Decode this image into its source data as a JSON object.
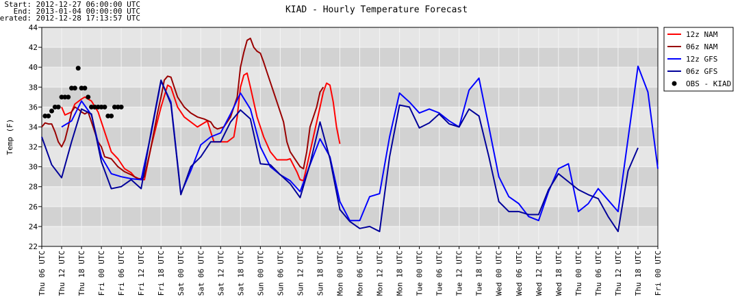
{
  "chart_data": {
    "type": "line",
    "title": "KIAD - Hourly Temperature Forecast",
    "info": [
      "Start: 2012-12-27 06:00:00 UTC",
      "End: 2013-01-04 00:00:00 UTC",
      "Generated: 2012-12-28 17:13:57 UTC"
    ],
    "ylabel": "Temp (F)",
    "xlim": [
      0,
      186
    ],
    "xticks": [
      {
        "value": 0,
        "label": "Thu 06 UTC"
      },
      {
        "value": 6,
        "label": "Thu 12 UTC"
      },
      {
        "value": 12,
        "label": "Thu 18 UTC"
      },
      {
        "value": 18,
        "label": "Fri 00 UTC"
      },
      {
        "value": 24,
        "label": "Fri 06 UTC"
      },
      {
        "value": 30,
        "label": "Fri 12 UTC"
      },
      {
        "value": 36,
        "label": "Fri 18 UTC"
      },
      {
        "value": 42,
        "label": "Sat 00 UTC"
      },
      {
        "value": 48,
        "label": "Sat 06 UTC"
      },
      {
        "value": 54,
        "label": "Sat 12 UTC"
      },
      {
        "value": 60,
        "label": "Sat 18 UTC"
      },
      {
        "value": 66,
        "label": "Sun 00 UTC"
      },
      {
        "value": 72,
        "label": "Sun 06 UTC"
      },
      {
        "value": 78,
        "label": "Sun 12 UTC"
      },
      {
        "value": 84,
        "label": "Sun 18 UTC"
      },
      {
        "value": 90,
        "label": "Mon 00 UTC"
      },
      {
        "value": 96,
        "label": "Mon 06 UTC"
      },
      {
        "value": 102,
        "label": "Mon 12 UTC"
      },
      {
        "value": 108,
        "label": "Mon 18 UTC"
      },
      {
        "value": 114,
        "label": "Tue 00 UTC"
      },
      {
        "value": 120,
        "label": "Tue 06 UTC"
      },
      {
        "value": 126,
        "label": "Tue 12 UTC"
      },
      {
        "value": 132,
        "label": "Tue 18 UTC"
      },
      {
        "value": 138,
        "label": "Wed 00 UTC"
      },
      {
        "value": 144,
        "label": "Wed 06 UTC"
      },
      {
        "value": 150,
        "label": "Wed 12 UTC"
      },
      {
        "value": 156,
        "label": "Wed 18 UTC"
      },
      {
        "value": 162,
        "label": "Thu 00 UTC"
      },
      {
        "value": 168,
        "label": "Thu 06 UTC"
      },
      {
        "value": 174,
        "label": "Thu 12 UTC"
      },
      {
        "value": 180,
        "label": "Thu 18 UTC"
      },
      {
        "value": 186,
        "label": "Fri 00 UTC"
      }
    ],
    "ylim": [
      22,
      44
    ],
    "yticks": [
      22,
      24,
      26,
      28,
      30,
      32,
      34,
      36,
      38,
      40,
      42,
      44
    ],
    "grid": true,
    "legend": "outside upper right",
    "series": [
      {
        "name": "12z NAM",
        "color": "#ff0000",
        "x": [
          6,
          7,
          9,
          10,
          12,
          13,
          15,
          17,
          19,
          21,
          23,
          25,
          27,
          28,
          30,
          31,
          33,
          36,
          38,
          39,
          40,
          41,
          43,
          45,
          47,
          49,
          50,
          51,
          52,
          54,
          56,
          58,
          59,
          60,
          61,
          62,
          63,
          65,
          67,
          69,
          71,
          74,
          75,
          77,
          78,
          79,
          80,
          82,
          84,
          85,
          86,
          87,
          88,
          89,
          90
        ],
        "values": [
          36,
          35.2,
          35.5,
          36.3,
          36.8,
          37,
          36.6,
          35.5,
          33.5,
          31.5,
          30.8,
          29.8,
          29.4,
          29,
          28.7,
          28.7,
          32,
          36,
          38.2,
          38,
          37,
          36,
          35,
          34.5,
          34,
          34.4,
          34.6,
          33.5,
          32.5,
          32.5,
          32.5,
          33,
          35,
          38,
          39.2,
          39.4,
          38,
          35,
          33,
          31.5,
          30.7,
          30.7,
          30.8,
          29.5,
          28.7,
          28.6,
          30,
          33,
          36,
          37.5,
          38.4,
          38.2,
          36.5,
          34,
          32.3
        ]
      },
      {
        "name": "06z NAM",
        "color": "#990000",
        "x": [
          0,
          1,
          2,
          3,
          4,
          5,
          6,
          7,
          8,
          9,
          10,
          11,
          12,
          13,
          14,
          15,
          16,
          17,
          18,
          19,
          21,
          23,
          25,
          27,
          29,
          30,
          31,
          33,
          35,
          36,
          37,
          38,
          39,
          40,
          41,
          43,
          45,
          47,
          49,
          51,
          52,
          53,
          55,
          57,
          59,
          60,
          61,
          62,
          63,
          64,
          65,
          66,
          67,
          68,
          70,
          72,
          73,
          74,
          75,
          77,
          78,
          79,
          80,
          81,
          83,
          84,
          85
        ],
        "values": [
          34,
          34.4,
          34.3,
          34.3,
          33.5,
          32.5,
          32,
          32.7,
          34,
          35.5,
          36,
          35.8,
          35.5,
          35.3,
          35.5,
          34.5,
          33.5,
          32.5,
          32,
          31,
          30.8,
          30,
          29.5,
          29.2,
          28.8,
          28.8,
          29,
          32,
          35.5,
          37,
          38.7,
          39.1,
          39,
          38,
          37,
          36,
          35.4,
          35,
          34.8,
          34.5,
          34,
          33.8,
          34,
          35,
          37,
          40,
          41.5,
          42.7,
          42.9,
          42,
          41.6,
          41.4,
          40.5,
          39.5,
          37.5,
          35.5,
          34.5,
          32.5,
          31.5,
          30.5,
          30,
          29.8,
          31.5,
          34,
          36,
          37.5,
          38
        ]
      },
      {
        "name": "12z GFS",
        "color": "#0000ff",
        "x": [
          6,
          9,
          12,
          15,
          18,
          21,
          24,
          27,
          30,
          33,
          36,
          39,
          42,
          45,
          48,
          51,
          54,
          57,
          60,
          63,
          66,
          69,
          72,
          75,
          78,
          81,
          84,
          87,
          90,
          93,
          96,
          99,
          102,
          105,
          108,
          111,
          114,
          117,
          120,
          123,
          126,
          129,
          132,
          135,
          138,
          141,
          144,
          147,
          150,
          153,
          156,
          159,
          162,
          165,
          168,
          174,
          180,
          183,
          186
        ],
        "values": [
          34,
          34.6,
          36.6,
          35.2,
          31,
          29.3,
          29,
          28.8,
          28.7,
          33.3,
          38.6,
          36.5,
          27.3,
          29.6,
          32.2,
          33,
          33.4,
          35.3,
          37.4,
          35.8,
          32,
          30,
          29.2,
          28.6,
          27.5,
          30.2,
          32.8,
          31,
          26.5,
          24.6,
          24.6,
          27,
          27.3,
          33,
          37.4,
          36.5,
          35.4,
          35.8,
          35.4,
          34.6,
          34,
          37.7,
          38.9,
          34,
          29,
          27,
          26.3,
          25,
          24.6,
          27.5,
          29.8,
          30.3,
          25.5,
          26.3,
          27.8,
          25.5,
          40.1,
          37.5,
          29.8
        ]
      },
      {
        "name": "06z GFS",
        "color": "#000099",
        "x": [
          0,
          3,
          6,
          9,
          12,
          15,
          18,
          21,
          24,
          27,
          30,
          33,
          36,
          39,
          42,
          45,
          48,
          51,
          54,
          57,
          60,
          63,
          66,
          69,
          72,
          75,
          78,
          81,
          84,
          87,
          90,
          93,
          96,
          99,
          102,
          105,
          108,
          111,
          114,
          117,
          120,
          123,
          126,
          129,
          132,
          135,
          138,
          141,
          144,
          147,
          150,
          153,
          156,
          159,
          162,
          165,
          168,
          171,
          174,
          177,
          180
        ],
        "values": [
          33,
          30.2,
          28.9,
          32.5,
          35.8,
          35.3,
          30.5,
          27.8,
          28,
          28.7,
          27.8,
          33.5,
          38.7,
          36.3,
          27.2,
          30,
          31,
          32.5,
          32.5,
          34.5,
          35.7,
          34.8,
          30.3,
          30.2,
          29.2,
          28.3,
          26.9,
          30.3,
          34.5,
          30.8,
          25.7,
          24.5,
          23.8,
          24,
          23.5,
          31,
          36.2,
          36,
          33.9,
          34.4,
          35.3,
          34.3,
          34,
          35.8,
          35.1,
          31,
          26.5,
          25.5,
          25.5,
          25.2,
          25.2,
          27.7,
          29.3,
          28.5,
          27.7,
          27.2,
          26.8,
          25,
          23.5,
          29.6,
          31.9
        ]
      },
      {
        "name": "OBS - KIAD",
        "color": "#000000",
        "type": "scatter",
        "x": [
          1,
          2,
          3,
          4,
          5,
          6,
          7,
          8,
          9,
          10,
          11,
          12,
          13,
          14,
          15,
          16,
          17,
          18,
          19,
          20,
          21,
          22,
          23,
          24
        ],
        "values": [
          35.1,
          35.1,
          35.6,
          36,
          36,
          37,
          37,
          37,
          37.9,
          37.9,
          39.9,
          37.9,
          37.9,
          37,
          36,
          36,
          36,
          36,
          36,
          35.1,
          35.1,
          36,
          36,
          36
        ]
      }
    ]
  }
}
